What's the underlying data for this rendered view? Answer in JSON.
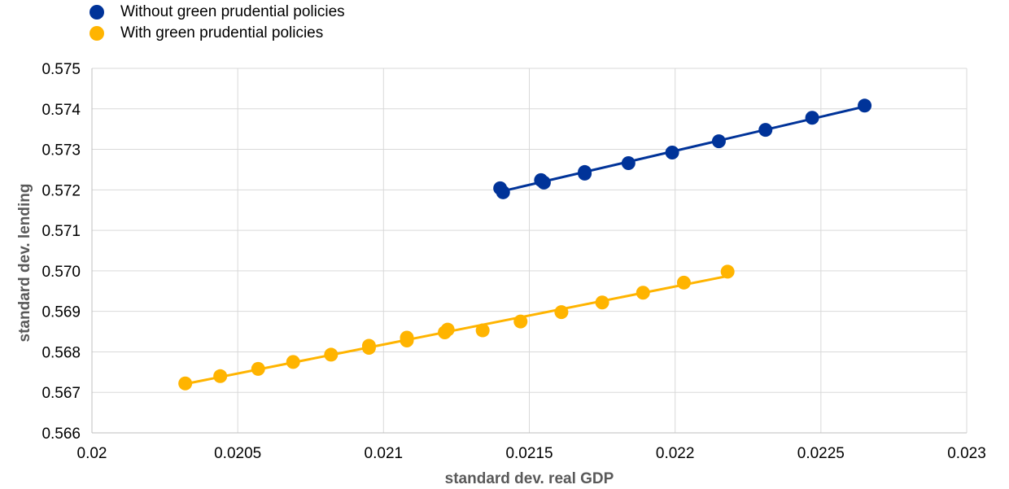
{
  "chart_data": {
    "type": "scatter",
    "title": "",
    "xlabel": "standard dev. real GDP",
    "ylabel": "standard dev. lending",
    "xlim": [
      0.02,
      0.023
    ],
    "ylim": [
      0.566,
      0.575
    ],
    "x_ticks": [
      "0.02",
      "0.0205",
      "0.021",
      "0.0215",
      "0.022",
      "0.0225",
      "0.023"
    ],
    "y_ticks": [
      "0.566",
      "0.567",
      "0.568",
      "0.569",
      "0.570",
      "0.571",
      "0.572",
      "0.573",
      "0.574",
      "0.575"
    ],
    "x_tick_values": [
      0.02,
      0.0205,
      0.021,
      0.0215,
      0.022,
      0.0225,
      0.023
    ],
    "y_tick_values": [
      0.566,
      0.567,
      0.568,
      0.569,
      0.57,
      0.571,
      0.572,
      0.573,
      0.574,
      0.575
    ],
    "grid": true,
    "legend_position": "top-left",
    "series": [
      {
        "name": "Without green prudential policies",
        "color": "#003399",
        "points": [
          [
            0.0214,
            0.57204
          ],
          [
            0.02141,
            0.57194
          ],
          [
            0.02154,
            0.57224
          ],
          [
            0.02155,
            0.57218
          ],
          [
            0.02169,
            0.57244
          ],
          [
            0.02169,
            0.5724
          ],
          [
            0.02184,
            0.57266
          ],
          [
            0.02199,
            0.57292
          ],
          [
            0.02215,
            0.5732
          ],
          [
            0.02231,
            0.57348
          ],
          [
            0.02247,
            0.57378
          ],
          [
            0.02265,
            0.57408
          ]
        ]
      },
      {
        "name": "With green prudential policies",
        "color": "#FFB400",
        "points": [
          [
            0.02032,
            0.56722
          ],
          [
            0.02044,
            0.5674
          ],
          [
            0.02057,
            0.56758
          ],
          [
            0.02069,
            0.56775
          ],
          [
            0.02082,
            0.56793
          ],
          [
            0.02095,
            0.5681
          ],
          [
            0.02095,
            0.56815
          ],
          [
            0.02108,
            0.56828
          ],
          [
            0.02108,
            0.56835
          ],
          [
            0.02121,
            0.56848
          ],
          [
            0.02122,
            0.56855
          ],
          [
            0.02134,
            0.56853
          ],
          [
            0.02147,
            0.56875
          ],
          [
            0.02161,
            0.56898
          ],
          [
            0.02175,
            0.56922
          ],
          [
            0.02189,
            0.56946
          ],
          [
            0.02203,
            0.56971
          ],
          [
            0.02218,
            0.56998
          ]
        ]
      }
    ]
  }
}
